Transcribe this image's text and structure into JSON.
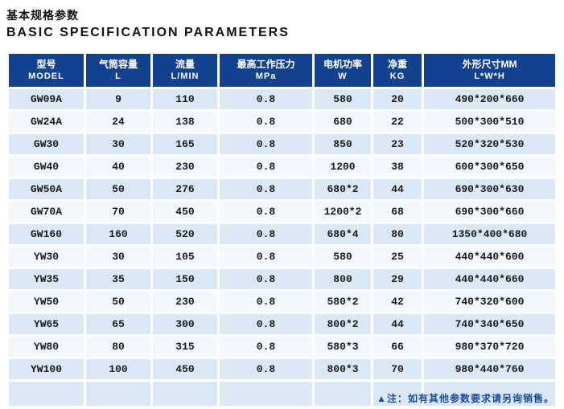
{
  "page": {
    "title_zh": "基本规格参数",
    "title_en": "BASIC SPECIFICATION PARAMETERS"
  },
  "table": {
    "columns": [
      {
        "zh": "型号",
        "sub": "MODEL"
      },
      {
        "zh": "气筒容量",
        "sub": "L"
      },
      {
        "zh": "流量",
        "sub": "L/MIN"
      },
      {
        "zh": "最高工作压力",
        "sub": "MPa"
      },
      {
        "zh": "电机功率",
        "sub": "W"
      },
      {
        "zh": "净重",
        "sub": "KG"
      },
      {
        "zh": "外形尺寸MM",
        "sub": "L*W*H"
      }
    ],
    "rows": [
      [
        "GW09A",
        "9",
        "110",
        "0.8",
        "580",
        "20",
        "490*200*660"
      ],
      [
        "GW24A",
        "24",
        "138",
        "0.8",
        "680",
        "22",
        "500*300*510"
      ],
      [
        "GW30",
        "30",
        "165",
        "0.8",
        "850",
        "23",
        "520*320*530"
      ],
      [
        "GW40",
        "40",
        "230",
        "0.8",
        "1200",
        "38",
        "600*300*650"
      ],
      [
        "GW50A",
        "50",
        "276",
        "0.8",
        "680*2",
        "44",
        "690*300*630"
      ],
      [
        "GW70A",
        "70",
        "450",
        "0.8",
        "1200*2",
        "68",
        "690*300*660"
      ],
      [
        "GW160",
        "160",
        "520",
        "0.8",
        "680*4",
        "80",
        "1350*400*680"
      ],
      [
        "YW30",
        "30",
        "105",
        "0.8",
        "580",
        "25",
        "440*440*600"
      ],
      [
        "YW35",
        "35",
        "150",
        "0.8",
        "800",
        "29",
        "440*440*660"
      ],
      [
        "YW50",
        "50",
        "230",
        "0.8",
        "580*2",
        "42",
        "740*320*600"
      ],
      [
        "YW65",
        "65",
        "300",
        "0.8",
        "800*2",
        "44",
        "740*340*650"
      ],
      [
        "YW80",
        "80",
        "315",
        "0.8",
        "580*3",
        "66",
        "980*370*720"
      ],
      [
        "YW100",
        "100",
        "450",
        "0.8",
        "800*3",
        "70",
        "980*440*760"
      ]
    ],
    "note": "▲注：如有其他参数要求请另询销售。"
  },
  "colors": {
    "header_bg": "#12418f",
    "row_alt_bg": "#dae7f5",
    "row_bg": "#f3f8fd",
    "note_color": "#1a4a9e"
  }
}
